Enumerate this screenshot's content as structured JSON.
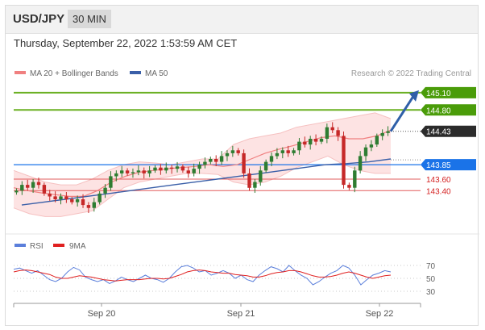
{
  "header": {
    "symbol": "USD/JPY",
    "interval": "30 MIN",
    "datetime": "Thursday, September 22, 2022 1:53:59 AM CET"
  },
  "legend": {
    "ma20_label": "MA 20 + Bollinger Bands",
    "ma50_label": "MA 50",
    "credit": "Research © 2022 Trading Central",
    "rsi_label": "RSI",
    "ma9_label": "9MA"
  },
  "colors": {
    "green_level": "#4a9c09",
    "resistance_line": "#6ab022",
    "blue_level": "#1a73e8",
    "support_line": "#e25c5c",
    "support_text": "#d42020",
    "bollinger_fill": "#fde3e3",
    "ma20": "#f08080",
    "ma50": "#3a5fa8",
    "rsi": "#5b7fdb",
    "ma9": "#e02020",
    "up_candle": "#2e7d32",
    "down_candle": "#c62828",
    "arrow": "#2f5fa8",
    "current_price_tag": "#2b2b2b"
  },
  "chart_data": [
    {
      "type": "candlestick",
      "title": "USD/JPY",
      "timeframe": "30 MIN",
      "x_labels": [
        "Sep 20",
        "Sep 21",
        "Sep 22"
      ],
      "ylim": [
        142.9,
        145.35
      ],
      "current_price": 144.43,
      "levels": [
        {
          "label": "145.10",
          "value": 145.1,
          "kind": "target"
        },
        {
          "label": "144.80",
          "value": 144.8,
          "kind": "resistance"
        },
        {
          "label": "144.43",
          "value": 144.43,
          "kind": "current"
        },
        {
          "label": "143.85",
          "value": 143.85,
          "kind": "pivot"
        },
        {
          "label": "143.60",
          "value": 143.6,
          "kind": "support"
        },
        {
          "label": "143.40",
          "value": 143.4,
          "kind": "support"
        }
      ],
      "price_path": [
        143.4,
        143.5,
        143.45,
        143.55,
        143.5,
        143.35,
        143.3,
        143.25,
        143.3,
        143.25,
        143.2,
        143.25,
        143.15,
        143.1,
        143.2,
        143.35,
        143.45,
        143.65,
        143.7,
        143.75,
        143.7,
        143.72,
        143.75,
        143.7,
        143.75,
        143.8,
        143.75,
        143.8,
        143.78,
        143.82,
        143.75,
        143.7,
        143.78,
        143.85,
        143.9,
        143.95,
        143.9,
        144.0,
        144.05,
        144.1,
        144.05,
        143.7,
        143.45,
        143.55,
        143.75,
        143.9,
        144.0,
        144.05,
        144.1,
        144.05,
        144.1,
        144.25,
        144.2,
        144.3,
        144.25,
        144.3,
        144.5,
        144.45,
        144.35,
        143.5,
        143.45,
        143.75,
        144.0,
        144.15,
        144.2,
        144.35,
        144.4,
        144.43
      ],
      "ma20": [
        143.45,
        143.4,
        143.36,
        143.33,
        143.3,
        143.3,
        143.4,
        143.55,
        143.65,
        143.72,
        143.75,
        143.78,
        143.8,
        143.82,
        143.85,
        143.82,
        143.85,
        143.95,
        144.05,
        144.12,
        144.18,
        144.25,
        144.32,
        144.35,
        144.3,
        144.3,
        144.35,
        144.45
      ],
      "ma50": [
        143.15,
        143.2,
        143.25,
        143.3,
        143.35,
        143.4,
        143.45,
        143.5,
        143.55,
        143.6,
        143.65,
        143.7,
        143.75,
        143.8,
        143.85,
        143.87,
        143.9,
        143.95
      ],
      "bollinger_upper": [
        143.75,
        143.65,
        143.55,
        143.5,
        143.5,
        143.6,
        143.75,
        143.85,
        143.9,
        143.88,
        143.85,
        143.9,
        143.95,
        143.95,
        144.2,
        144.3,
        144.35,
        144.4,
        144.5,
        144.55,
        144.6,
        144.65,
        144.7,
        144.75,
        144.65
      ],
      "bollinger_lower": [
        143.1,
        143.0,
        142.95,
        142.95,
        143.0,
        143.05,
        143.25,
        143.45,
        143.55,
        143.6,
        143.65,
        143.7,
        143.7,
        143.68,
        143.55,
        143.5,
        143.55,
        143.65,
        143.8,
        143.9,
        144.0,
        143.85,
        143.75,
        143.7,
        143.7
      ],
      "series": [
        {
          "name": "MA 20 + Bollinger Bands"
        },
        {
          "name": "MA 50"
        }
      ]
    },
    {
      "type": "line",
      "title": "RSI",
      "ylim": [
        20,
        80
      ],
      "y_ticks": [
        70,
        50,
        30
      ],
      "series": [
        {
          "name": "RSI",
          "values": [
            64,
            66,
            62,
            58,
            62,
            55,
            48,
            45,
            50,
            60,
            67,
            63,
            52,
            48,
            45,
            48,
            42,
            46,
            52,
            48,
            45,
            50,
            55,
            50,
            48,
            44,
            50,
            60,
            68,
            70,
            66,
            60,
            62,
            55,
            58,
            62,
            58,
            50,
            55,
            48,
            45,
            55,
            62,
            68,
            65,
            60,
            70,
            62,
            55,
            50,
            40,
            45,
            52,
            58,
            62,
            70,
            66,
            55,
            40,
            48,
            55,
            58,
            62,
            60
          ]
        },
        {
          "name": "9MA",
          "values": [
            60,
            62,
            63,
            62,
            60,
            58,
            56,
            52,
            50,
            50,
            52,
            54,
            53,
            52,
            50,
            48,
            47,
            46,
            47,
            48,
            48,
            48,
            49,
            50,
            50,
            49,
            50,
            53,
            56,
            60,
            62,
            63,
            62,
            60,
            59,
            58,
            58,
            56,
            55,
            54,
            52,
            52,
            54,
            57,
            59,
            60,
            62,
            62,
            60,
            57,
            54,
            52,
            52,
            53,
            55,
            58,
            60,
            58,
            55,
            52,
            50,
            52,
            54,
            55
          ]
        }
      ]
    }
  ]
}
